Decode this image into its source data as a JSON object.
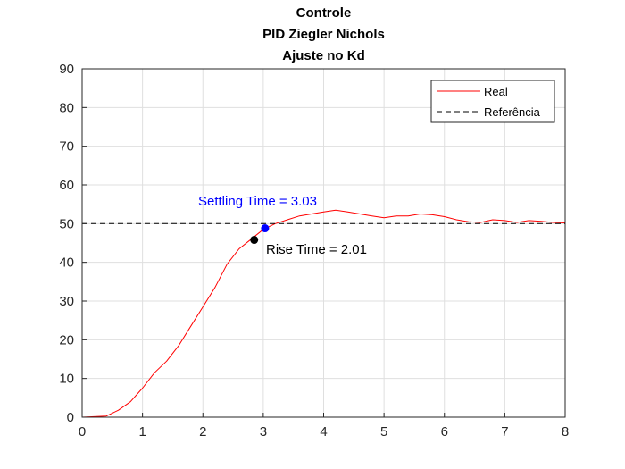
{
  "chart_data": {
    "type": "line",
    "title": [
      "Controle",
      "PID Ziegler Nichols",
      "Ajuste no Kd"
    ],
    "xlabel": "",
    "ylabel": "",
    "xlim": [
      0,
      8
    ],
    "ylim": [
      0,
      90
    ],
    "x_ticks": [
      "0",
      "1",
      "2",
      "3",
      "4",
      "5",
      "6",
      "7",
      "8"
    ],
    "y_ticks": [
      "0",
      "10",
      "20",
      "30",
      "40",
      "50",
      "60",
      "70",
      "80",
      "90"
    ],
    "grid": true,
    "legend_position": "top-right",
    "series": [
      {
        "name": "Real",
        "color": "#ff0000",
        "style": "solid",
        "x": [
          0,
          0.4,
          0.6,
          0.8,
          1.0,
          1.2,
          1.4,
          1.6,
          1.8,
          2.0,
          2.2,
          2.4,
          2.6,
          2.8,
          3.0,
          3.2,
          3.4,
          3.6,
          3.8,
          4.0,
          4.2,
          4.4,
          4.6,
          4.8,
          5.0,
          5.2,
          5.4,
          5.6,
          5.8,
          6.0,
          6.2,
          6.4,
          6.6,
          6.8,
          7.0,
          7.2,
          7.4,
          7.6,
          7.8,
          8.0
        ],
        "y": [
          0,
          0.3,
          1.8,
          4.0,
          7.5,
          11.5,
          14.5,
          18.5,
          23.5,
          28.5,
          33.5,
          39.5,
          43.5,
          46.0,
          48.5,
          50.0,
          51.0,
          52.0,
          52.5,
          53.0,
          53.5,
          53.0,
          52.5,
          52.0,
          51.5,
          52.0,
          52.0,
          52.5,
          52.3,
          51.8,
          51.0,
          50.5,
          50.3,
          51.0,
          50.8,
          50.3,
          50.8,
          50.6,
          50.3,
          50.2
        ]
      },
      {
        "name": "Referência",
        "color": "#000000",
        "style": "dashed",
        "x": [
          0,
          8
        ],
        "y": [
          50,
          50
        ]
      }
    ],
    "markers": [
      {
        "name": "rise-time",
        "x": 2.85,
        "y": 45.8,
        "color": "#000000",
        "label": "Rise Time = 2.01"
      },
      {
        "name": "settling-time",
        "x": 3.03,
        "y": 48.8,
        "color": "#0000ff",
        "label": "Settling Time = 3.03"
      }
    ]
  }
}
